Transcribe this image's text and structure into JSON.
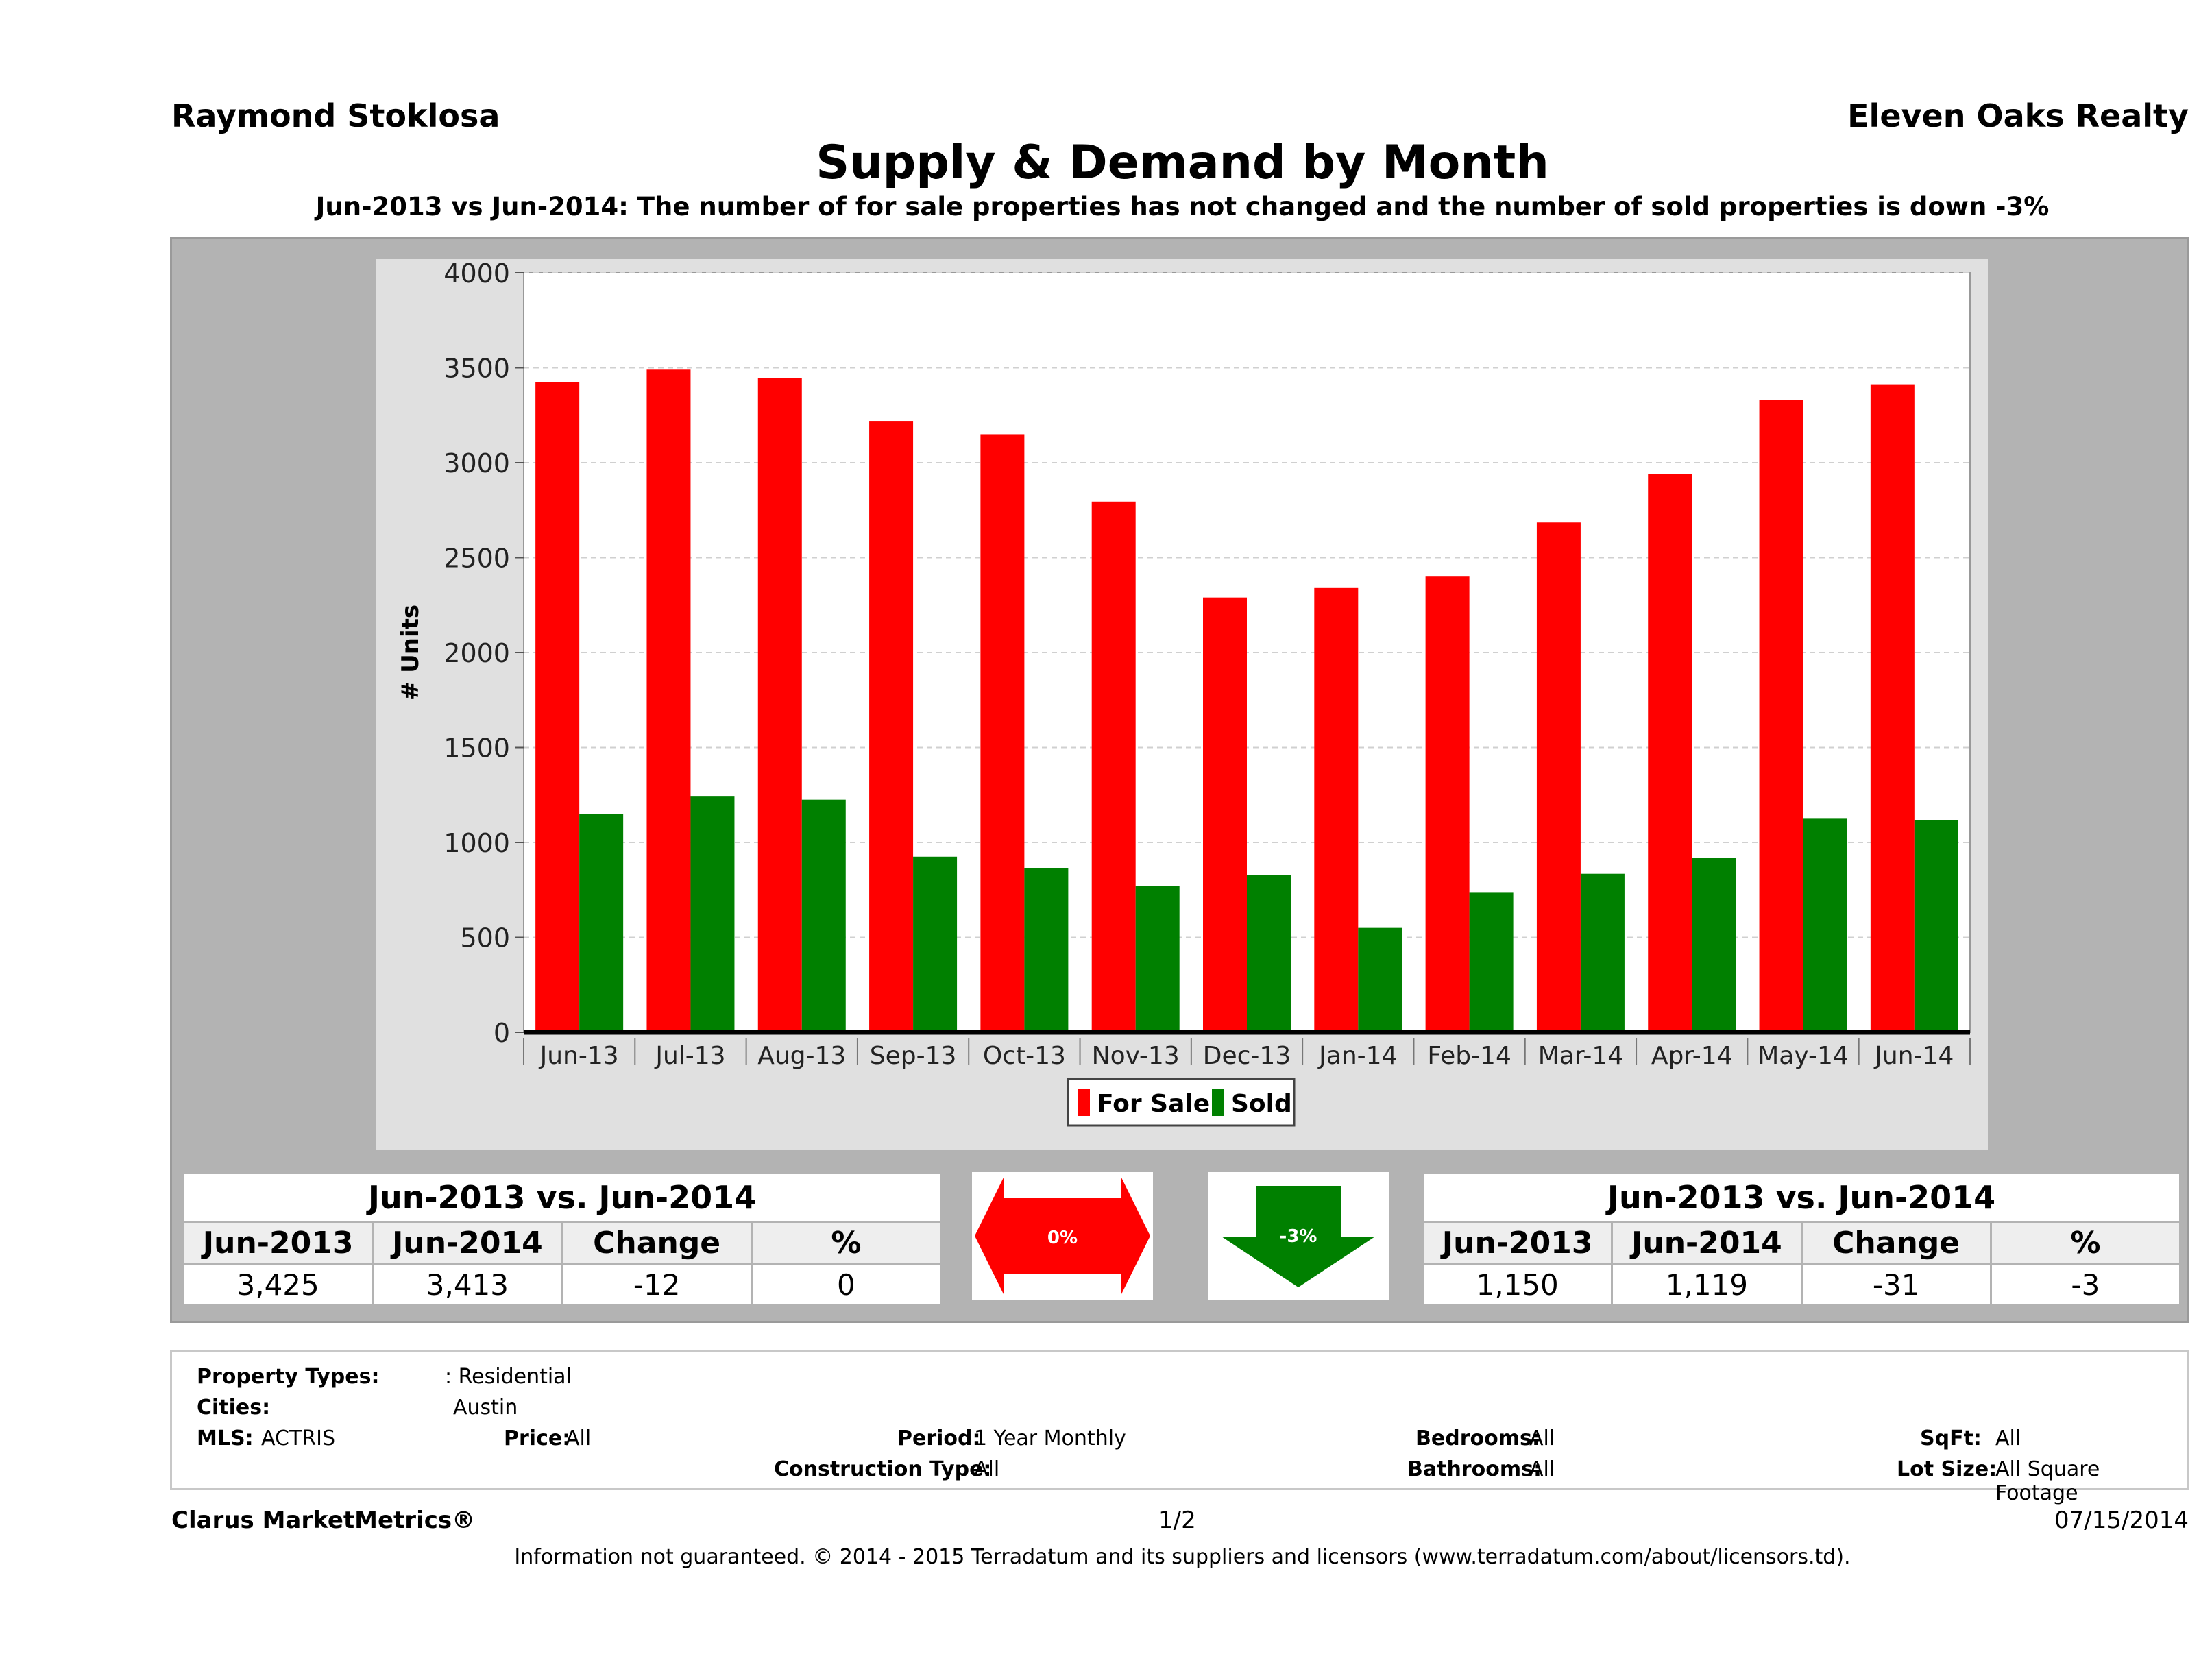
{
  "header": {
    "agent": "Raymond Stoklosa",
    "company": "Eleven Oaks Realty",
    "title": "Supply & Demand by Month",
    "subtitle": "Jun-2013 vs Jun-2014: The number of for sale properties has not changed and the number of sold properties is down -3%"
  },
  "chart_data": {
    "type": "bar",
    "categories": [
      "Jun-13",
      "Jul-13",
      "Aug-13",
      "Sep-13",
      "Oct-13",
      "Nov-13",
      "Dec-13",
      "Jan-14",
      "Feb-14",
      "Mar-14",
      "Apr-14",
      "May-14",
      "Jun-14"
    ],
    "series": [
      {
        "name": "For Sale",
        "color": "#ff0000",
        "values": [
          3425,
          3490,
          3445,
          3220,
          3150,
          2795,
          2290,
          2340,
          2400,
          2685,
          2940,
          3330,
          3413
        ]
      },
      {
        "name": "Sold",
        "color": "#008000",
        "values": [
          1150,
          1245,
          1225,
          925,
          865,
          770,
          830,
          550,
          735,
          835,
          920,
          1125,
          1119
        ]
      }
    ],
    "ylabel": "# Units",
    "xlabel": "",
    "ylim": [
      0,
      4000
    ],
    "yticks": [
      0,
      500,
      1000,
      1500,
      2000,
      2500,
      3000,
      3500,
      4000
    ],
    "grid": true,
    "legend": "bottom"
  },
  "for_sale_table": {
    "caption": "Jun-2013 vs. Jun-2014",
    "headers": [
      "Jun-2013",
      "Jun-2014",
      "Change",
      "%"
    ],
    "values": [
      "3,425",
      "3,413",
      "-12",
      "0"
    ]
  },
  "for_sale_indicator": {
    "label": "0%",
    "color": "#ff0000",
    "icon": "double-arrow-icon"
  },
  "sold_indicator": {
    "label": "-3%",
    "color": "#008000",
    "icon": "down-arrow-icon"
  },
  "sold_table": {
    "caption": "Jun-2013 vs. Jun-2014",
    "headers": [
      "Jun-2013",
      "Jun-2014",
      "Change",
      "%"
    ],
    "values": [
      "1,150",
      "1,119",
      "-31",
      "-3"
    ]
  },
  "criteria": {
    "property_types_label": "Property Types:",
    "property_types_value": ": Residential",
    "cities_label": "Cities:",
    "cities_value": "Austin",
    "mls_label": "MLS:",
    "mls_value": "ACTRIS",
    "price_label": "Price:",
    "price_value": "All",
    "period_label": "Period:",
    "period_value": "1 Year Monthly",
    "construction_label": "Construction Type:",
    "construction_value": "All",
    "bedrooms_label": "Bedrooms:",
    "bedrooms_value": "All",
    "bathrooms_label": "Bathrooms:",
    "bathrooms_value": "All",
    "sqft_label": "SqFt:",
    "sqft_value": "All",
    "lot_label": "Lot Size:",
    "lot_value": "All Square Footage"
  },
  "footer": {
    "brand": "Clarus MarketMetrics®",
    "page": "1/2",
    "date": "07/15/2014",
    "disclaimer": "Information not guaranteed. © 2014 - 2015 Terradatum and its suppliers and licensors (www.terradatum.com/about/licensors.td)."
  }
}
